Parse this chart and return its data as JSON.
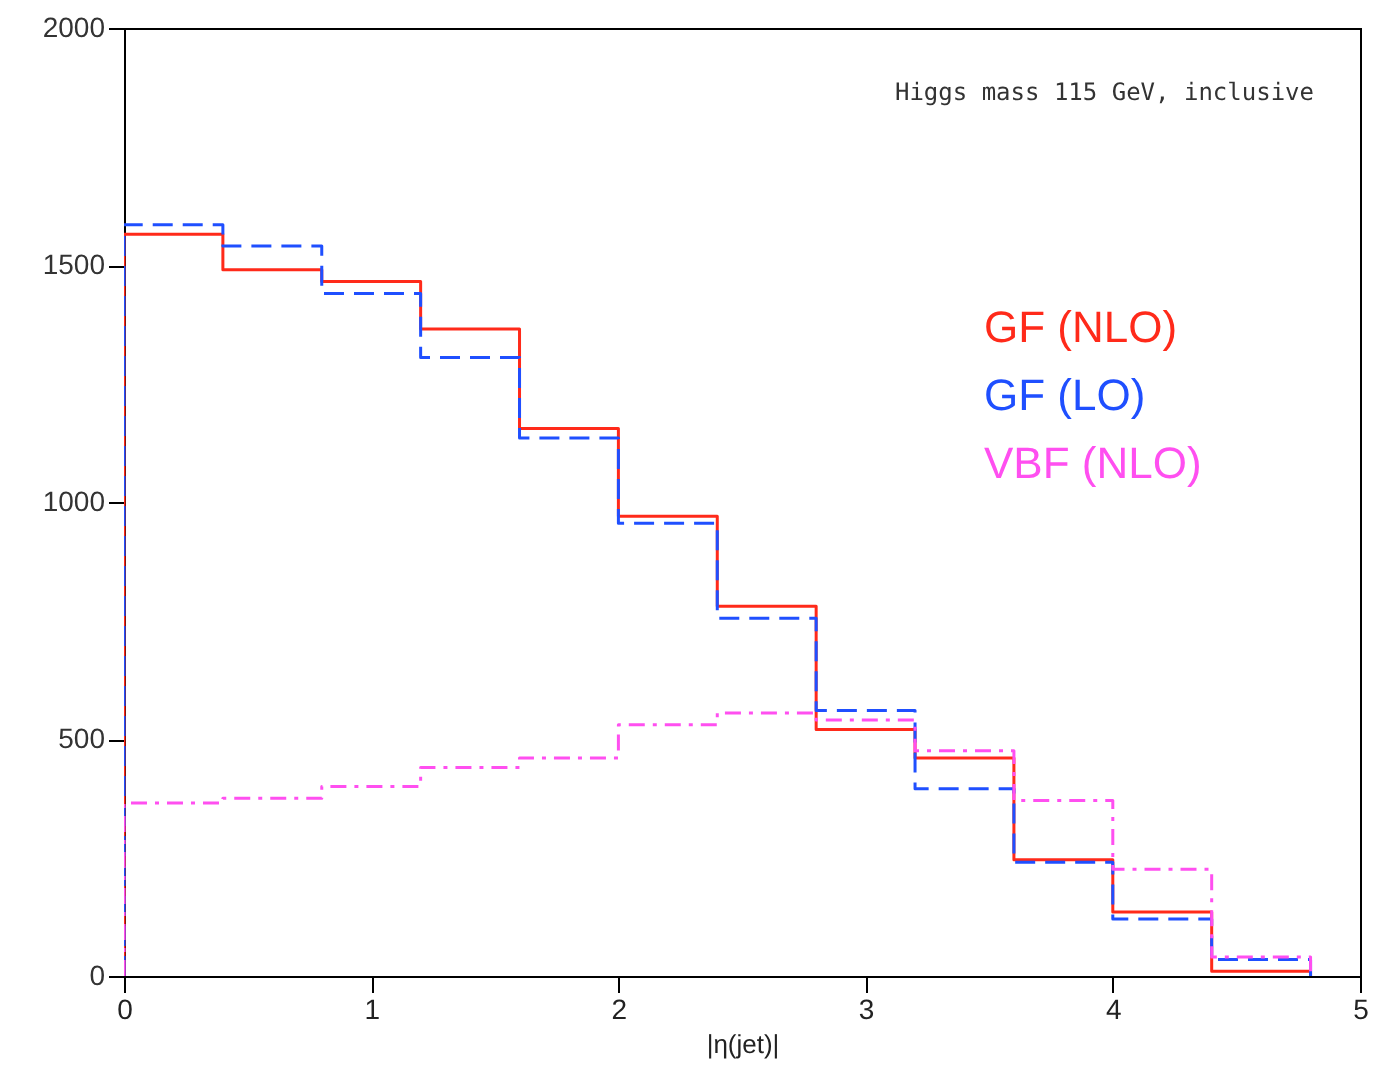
{
  "chart_data": {
    "type": "histogram",
    "xlabel": "|η(jet)|",
    "annotations": [
      "Higgs mass 115 GeV, inclusive"
    ],
    "bins": [
      0,
      0.4,
      0.8,
      1.2,
      1.6,
      2.0,
      2.4,
      2.8,
      3.2,
      3.6,
      4.0,
      4.4,
      4.8
    ],
    "series": [
      {
        "name": "GF (NLO)",
        "color": "#ff2a1a",
        "line_style": "solid",
        "values": [
          1565,
          1490,
          1465,
          1365,
          1155,
          970,
          780,
          520,
          460,
          245,
          135,
          10
        ]
      },
      {
        "name": "GF (LO)",
        "color": "#1f4fff",
        "line_style": "dashed",
        "values": [
          1585,
          1540,
          1440,
          1305,
          1135,
          955,
          755,
          560,
          395,
          240,
          120,
          35
        ]
      },
      {
        "name": "VBF (NLO)",
        "color": "#ff4ff0",
        "line_style": "dashdot",
        "values": [
          365,
          375,
          400,
          440,
          460,
          530,
          555,
          540,
          475,
          370,
          225,
          40
        ]
      }
    ],
    "xlim": [
      0,
      5
    ],
    "xticks": [
      0,
      1,
      2,
      3,
      4,
      5
    ],
    "ylim": [
      0,
      2000
    ],
    "yticks": [
      0,
      500,
      1000,
      1500,
      2000
    ],
    "legend": "right",
    "grid": false
  }
}
